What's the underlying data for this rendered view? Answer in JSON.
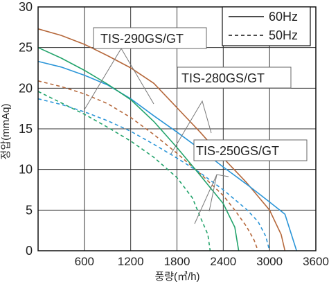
{
  "chart_data": {
    "type": "line",
    "xlabel": "풍량(㎥/h)",
    "ylabel": "정압(mmAq)",
    "xlim": [
      0,
      3600
    ],
    "ylim": [
      0,
      30
    ],
    "x_ticks": [
      "600",
      "1200",
      "1800",
      "2400",
      "3000",
      "3600"
    ],
    "y_ticks": [
      "0",
      "5",
      "10",
      "15",
      "20",
      "25",
      "30"
    ],
    "grid": true,
    "legend": {
      "position": "top-right",
      "entries": [
        {
          "label": "60Hz",
          "style": "solid"
        },
        {
          "label": "50Hz",
          "style": "dashed"
        }
      ]
    },
    "model_labels": [
      "TIS-290GS/GT",
      "TIS-280GS/GT",
      "TIS-250GS/GT"
    ],
    "series": [
      {
        "model": "TIS-290GS/GT",
        "freq": "60Hz",
        "color": "#b5673a",
        "dash": false,
        "points": [
          [
            0,
            27.3
          ],
          [
            300,
            26.5
          ],
          [
            600,
            25.4
          ],
          [
            900,
            24.0
          ],
          [
            1200,
            22.5
          ],
          [
            1500,
            20.6
          ],
          [
            1800,
            17.6
          ],
          [
            2100,
            14.6
          ],
          [
            2400,
            11.4
          ],
          [
            2700,
            8.4
          ],
          [
            3000,
            5.0
          ],
          [
            3150,
            2.0
          ],
          [
            3200,
            0
          ]
        ]
      },
      {
        "model": "TIS-290GS/GT",
        "freq": "50Hz",
        "color": "#b5673a",
        "dash": true,
        "points": [
          [
            0,
            20.9
          ],
          [
            300,
            20.2
          ],
          [
            600,
            19.3
          ],
          [
            900,
            18.1
          ],
          [
            1200,
            16.4
          ],
          [
            1500,
            14.3
          ],
          [
            1800,
            12.0
          ],
          [
            2100,
            9.5
          ],
          [
            2400,
            6.8
          ],
          [
            2550,
            5.0
          ],
          [
            2700,
            3.0
          ],
          [
            2800,
            1.3
          ],
          [
            2850,
            0
          ]
        ]
      },
      {
        "model": "TIS-280GS/GT",
        "freq": "60Hz",
        "color": "#2a95d8",
        "dash": false,
        "points": [
          [
            0,
            23.3
          ],
          [
            300,
            22.6
          ],
          [
            600,
            21.6
          ],
          [
            900,
            20.4
          ],
          [
            1200,
            18.7
          ],
          [
            1500,
            16.6
          ],
          [
            1800,
            14.6
          ],
          [
            2100,
            12.5
          ],
          [
            2400,
            10.3
          ],
          [
            2700,
            8.2
          ],
          [
            3000,
            6.0
          ],
          [
            3200,
            4.5
          ],
          [
            3300,
            1.5
          ],
          [
            3350,
            0
          ]
        ]
      },
      {
        "model": "TIS-280GS/GT",
        "freq": "50Hz",
        "color": "#2a95d8",
        "dash": true,
        "points": [
          [
            0,
            18.7
          ],
          [
            300,
            18.0
          ],
          [
            600,
            17.1
          ],
          [
            900,
            16.0
          ],
          [
            1200,
            14.7
          ],
          [
            1500,
            13.1
          ],
          [
            1800,
            11.4
          ],
          [
            2100,
            9.6
          ],
          [
            2400,
            7.5
          ],
          [
            2700,
            5.1
          ],
          [
            2850,
            3.6
          ],
          [
            2950,
            1.8
          ],
          [
            3000,
            0
          ]
        ]
      },
      {
        "model": "TIS-250GS/GT",
        "freq": "60Hz",
        "color": "#22a36b",
        "dash": false,
        "points": [
          [
            0,
            25.0
          ],
          [
            300,
            23.7
          ],
          [
            600,
            22.2
          ],
          [
            900,
            20.5
          ],
          [
            1200,
            18.6
          ],
          [
            1500,
            15.9
          ],
          [
            1800,
            12.7
          ],
          [
            2100,
            9.3
          ],
          [
            2400,
            5.8
          ],
          [
            2550,
            2.9
          ],
          [
            2600,
            0
          ]
        ]
      },
      {
        "model": "TIS-250GS/GT",
        "freq": "50Hz",
        "color": "#22a36b",
        "dash": true,
        "points": [
          [
            0,
            19.6
          ],
          [
            300,
            18.2
          ],
          [
            600,
            16.8
          ],
          [
            900,
            15.2
          ],
          [
            1200,
            13.5
          ],
          [
            1500,
            11.5
          ],
          [
            1800,
            9.0
          ],
          [
            2000,
            6.5
          ],
          [
            2100,
            4.2
          ],
          [
            2200,
            2.0
          ],
          [
            2230,
            0
          ]
        ]
      }
    ]
  }
}
